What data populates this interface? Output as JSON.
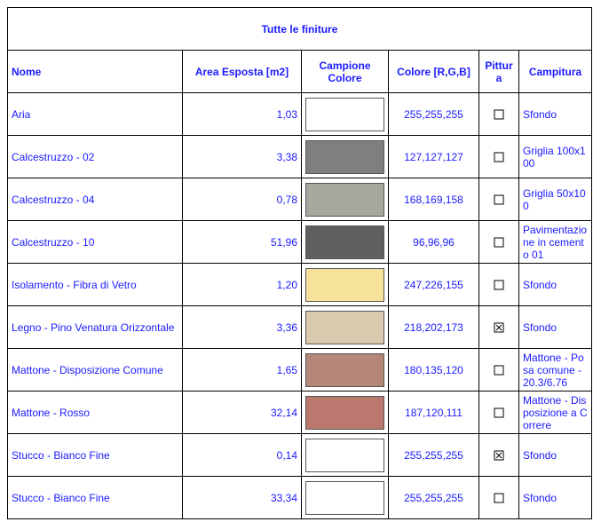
{
  "title": "Tutte le finiture",
  "headers": [
    "Nome",
    "Area Esposta [m2]",
    "Campione Colore",
    "Colore [R,G,B]",
    "Pittura",
    "Campitura"
  ],
  "rows": [
    {
      "name": "Aria",
      "area": "1,03",
      "rgb": "255,255,255",
      "paint": false,
      "hatch": "Sfondo"
    },
    {
      "name": "Calcestruzzo - 02",
      "area": "3,38",
      "rgb": "127,127,127",
      "paint": false,
      "hatch": "Griglia 100x100"
    },
    {
      "name": "Calcestruzzo - 04",
      "area": "0,78",
      "rgb": "168,169,158",
      "paint": false,
      "hatch": "Griglia 50x100"
    },
    {
      "name": "Calcestruzzo - 10",
      "area": "51,96",
      "rgb": "96,96,96",
      "paint": false,
      "hatch": "Pavimentazione in cemento 01"
    },
    {
      "name": "Isolamento - Fibra di Vetro",
      "area": "1,20",
      "rgb": "247,226,155",
      "paint": false,
      "hatch": "Sfondo"
    },
    {
      "name": "Legno - Pino Venatura Orizzontale",
      "area": "3,36",
      "rgb": "218,202,173",
      "paint": true,
      "hatch": "Sfondo"
    },
    {
      "name": "Mattone - Disposizione Comune",
      "area": "1,65",
      "rgb": "180,135,120",
      "paint": false,
      "hatch": "Mattone - Posa comune - 20.3/6.76"
    },
    {
      "name": "Mattone - Rosso",
      "area": "32,14",
      "rgb": "187,120,111",
      "paint": false,
      "hatch": "Mattone - Disposizione a Correre"
    },
    {
      "name": "Stucco - Bianco Fine",
      "area": "0,14",
      "rgb": "255,255,255",
      "paint": true,
      "hatch": "Sfondo"
    },
    {
      "name": "Stucco - Bianco Fine",
      "area": "33,34",
      "rgb": "255,255,255",
      "paint": false,
      "hatch": "Sfondo"
    }
  ]
}
